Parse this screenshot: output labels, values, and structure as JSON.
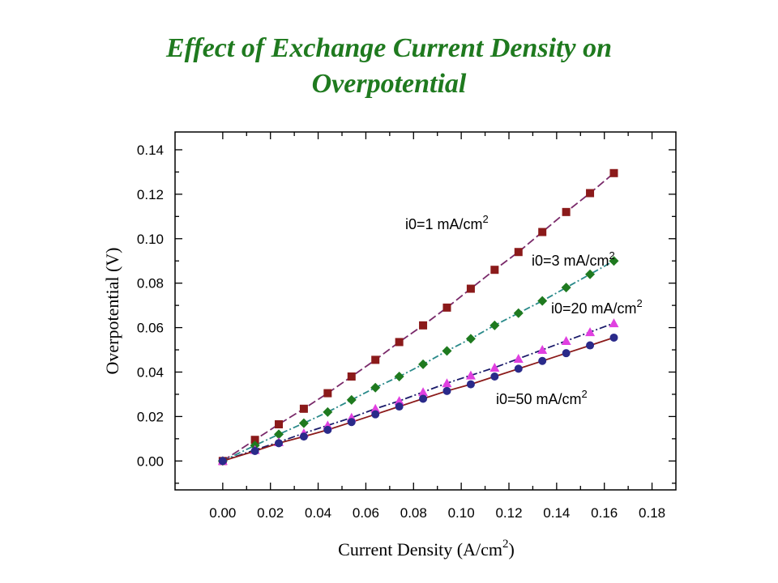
{
  "title_line1": "Effect of Exchange Current Density on",
  "title_line2": "Overpotential",
  "chart_data": {
    "type": "line",
    "xlabel": "Current Density (A/cm",
    "xlabel_sup": "2",
    "xlabel_end": ")",
    "ylabel": "Overpotential (V)",
    "xlim": [
      -0.02,
      0.19
    ],
    "ylim": [
      -0.013,
      0.148
    ],
    "xticks": [
      0.0,
      0.02,
      0.04,
      0.06,
      0.08,
      0.1,
      0.12,
      0.14,
      0.16,
      0.18
    ],
    "xtick_labels": [
      "0.00",
      "0.02",
      "0.04",
      "0.06",
      "0.08",
      "0.10",
      "0.12",
      "0.14",
      "0.16",
      "0.18"
    ],
    "yticks": [
      0.0,
      0.02,
      0.04,
      0.06,
      0.08,
      0.1,
      0.12,
      0.14
    ],
    "ytick_labels": [
      "0.00",
      "0.02",
      "0.04",
      "0.06",
      "0.08",
      "0.10",
      "0.12",
      "0.14"
    ],
    "grid": false,
    "x": [
      0.0,
      0.0135,
      0.0235,
      0.034,
      0.044,
      0.054,
      0.064,
      0.074,
      0.084,
      0.094,
      0.104,
      0.114,
      0.124,
      0.134,
      0.144,
      0.154,
      0.164
    ],
    "series": [
      {
        "annotation": "i0=1 mA/cm",
        "annotation_sup": "2",
        "values": [
          0.0,
          0.0095,
          0.0165,
          0.0235,
          0.0305,
          0.038,
          0.0455,
          0.0535,
          0.061,
          0.069,
          0.0775,
          0.086,
          0.094,
          0.103,
          0.112,
          0.1205,
          0.1295
        ],
        "color": "#8b1a1a",
        "line_color": "#7a2a6a",
        "marker": "square",
        "dash": "10,4"
      },
      {
        "annotation": "i0=3 mA/cm",
        "annotation_sup": "2",
        "values": [
          0.0,
          0.007,
          0.012,
          0.017,
          0.022,
          0.0275,
          0.033,
          0.038,
          0.0435,
          0.0495,
          0.055,
          0.061,
          0.0665,
          0.072,
          0.078,
          0.084,
          0.09
        ],
        "color": "#1f7a1f",
        "line_color": "#2a8a8a",
        "marker": "diamond",
        "dash": "8,3,2,3"
      },
      {
        "annotation": "i0=20 mA/cm",
        "annotation_sup": "2",
        "values": [
          0.0,
          0.005,
          0.0085,
          0.0125,
          0.016,
          0.0195,
          0.0235,
          0.027,
          0.031,
          0.035,
          0.0385,
          0.042,
          0.046,
          0.05,
          0.054,
          0.058,
          0.062
        ],
        "color": "#e040e0",
        "line_color": "#1a1a6a",
        "marker": "triangle",
        "dash": "9,3,2,3"
      },
      {
        "annotation": "i0=50 mA/cm",
        "annotation_sup": "2",
        "values": [
          0.0,
          0.0045,
          0.008,
          0.011,
          0.014,
          0.0175,
          0.021,
          0.0245,
          0.028,
          0.0315,
          0.0345,
          0.038,
          0.0415,
          0.045,
          0.0485,
          0.052,
          0.0555
        ],
        "color": "#2a2a8a",
        "line_color": "#8b1a1a",
        "marker": "circle",
        "dash": ""
      }
    ]
  }
}
